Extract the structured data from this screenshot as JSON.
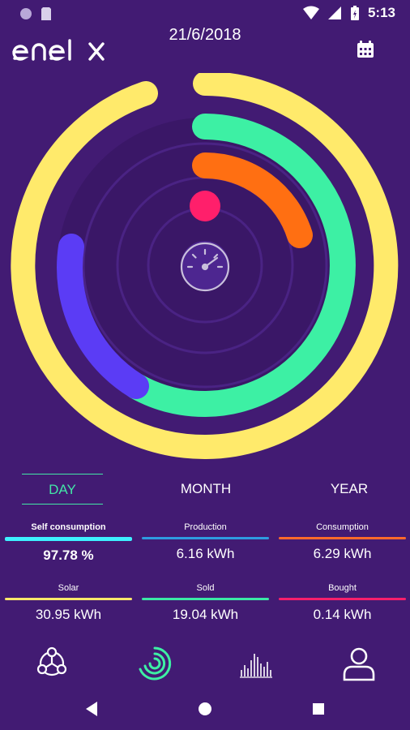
{
  "status_bar": {
    "time": "5:13"
  },
  "header": {
    "brand": "enel x",
    "date": "21/6/2018"
  },
  "tabs": [
    {
      "label": "DAY",
      "active": true
    },
    {
      "label": "MONTH",
      "active": false
    },
    {
      "label": "YEAR",
      "active": false
    }
  ],
  "stats": [
    {
      "label": "Self consumption",
      "value": "97.78 %",
      "color": "#3ef0ff"
    },
    {
      "label": "Production",
      "value": "6.16 kWh",
      "color": "#2e9be0"
    },
    {
      "label": "Consumption",
      "value": "6.29 kWh",
      "color": "#ff6a2a"
    },
    {
      "label": "Solar",
      "value": "30.95 kWh",
      "color": "#ffe96a"
    },
    {
      "label": "Sold",
      "value": "19.04 kWh",
      "color": "#3be8a6"
    },
    {
      "label": "Bought",
      "value": "0.14 kWh",
      "color": "#ff1f6b"
    }
  ],
  "colors": {
    "background": "#421b73",
    "ring_yellow": "#ffea6b",
    "ring_green": "#3df0a4",
    "ring_orange": "#ff6f12",
    "ring_blue": "#5b3cf5",
    "dot_pink": "#ff1f6b",
    "active_tab": "#43e6a7"
  },
  "icons": {
    "center": "speedometer-icon",
    "calendar": "calendar-icon",
    "nav": [
      "network-icon",
      "rings-icon",
      "bar-chart-icon",
      "user-icon"
    ]
  }
}
